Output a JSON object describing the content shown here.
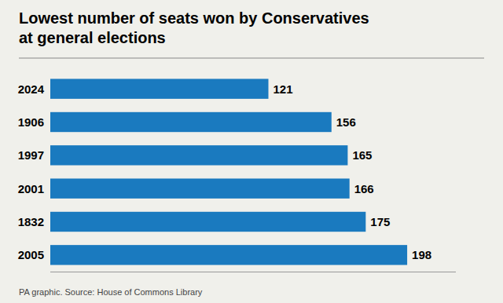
{
  "chart_data": {
    "type": "bar",
    "orientation": "horizontal",
    "title": "Lowest number of seats won by Conservatives",
    "subtitle": "at general elections",
    "annotations": [
      "PA graphic. Source: House of Commons Library"
    ],
    "categories": [
      "2024",
      "1906",
      "1997",
      "2001",
      "1832",
      "2005"
    ],
    "values": [
      121,
      156,
      165,
      166,
      175,
      198
    ],
    "color": "#1a7abf",
    "xlim": [
      0,
      225
    ],
    "grid": false,
    "data_labels": true,
    "tick_labels": "y"
  }
}
